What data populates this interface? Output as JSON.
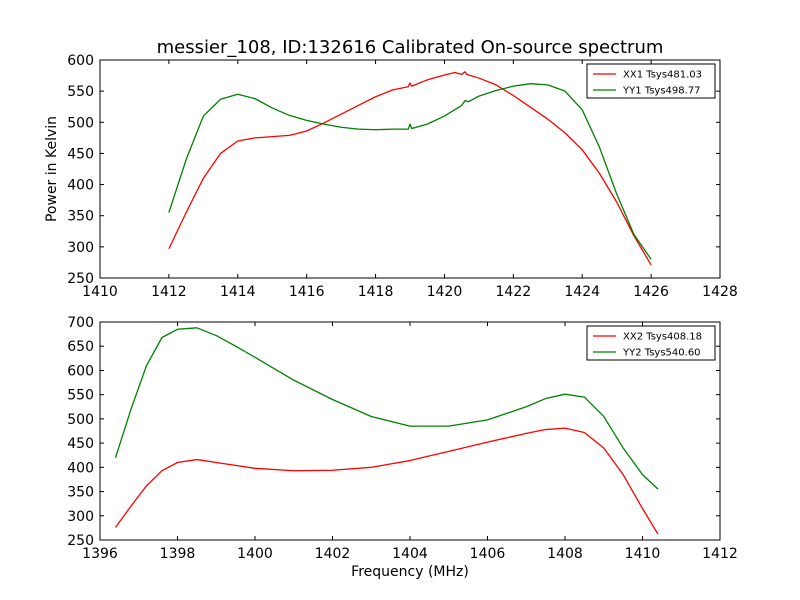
{
  "figure": {
    "title": "messier_108, ID:132616 Calibrated On-source spectrum",
    "shared_xlabel": "Frequency (MHz)"
  },
  "chart_data": [
    {
      "type": "line",
      "title": "messier_108, ID:132616 Calibrated On-source spectrum",
      "xlabel": "",
      "ylabel": "Power in Kelvin",
      "xlim": [
        1410,
        1428
      ],
      "ylim": [
        250,
        600
      ],
      "xticks": [
        1410,
        1412,
        1414,
        1416,
        1418,
        1420,
        1422,
        1424,
        1426,
        1428
      ],
      "yticks": [
        250,
        300,
        350,
        400,
        450,
        500,
        550,
        600
      ],
      "grid": false,
      "legend": "top-right",
      "series": [
        {
          "name": "XX1 Tsys481.03",
          "color": "#ff0000",
          "x": [
            1412.0,
            1412.5,
            1413.0,
            1413.5,
            1414.0,
            1414.5,
            1415.0,
            1415.5,
            1416.0,
            1416.5,
            1417.0,
            1417.5,
            1418.0,
            1418.5,
            1418.95,
            1419.0,
            1419.05,
            1419.5,
            1420.0,
            1420.3,
            1420.5,
            1420.6,
            1420.65,
            1420.7,
            1421.0,
            1421.5,
            1422.0,
            1422.5,
            1423.0,
            1423.5,
            1424.0,
            1424.5,
            1425.0,
            1425.5,
            1426.0
          ],
          "y": [
            297,
            355,
            410,
            450,
            470,
            475,
            477,
            479,
            486,
            499,
            513,
            527,
            541,
            552,
            557,
            563,
            558,
            568,
            576,
            580,
            577,
            581,
            577,
            576,
            571,
            560,
            543,
            524,
            505,
            483,
            456,
            418,
            372,
            318,
            271
          ]
        },
        {
          "name": "YY1 Tsys498.77",
          "color": "#008000",
          "x": [
            1412.0,
            1412.5,
            1413.0,
            1413.5,
            1414.0,
            1414.5,
            1415.0,
            1415.5,
            1416.0,
            1416.5,
            1417.0,
            1417.5,
            1418.0,
            1418.5,
            1418.95,
            1419.0,
            1419.05,
            1419.5,
            1420.0,
            1420.5,
            1420.6,
            1420.7,
            1421.0,
            1421.5,
            1422.0,
            1422.5,
            1423.0,
            1423.5,
            1424.0,
            1424.5,
            1425.0,
            1425.5,
            1426.0
          ],
          "y": [
            355,
            440,
            510,
            537,
            545,
            538,
            523,
            511,
            503,
            497,
            492,
            489,
            488,
            489,
            489,
            497,
            490,
            497,
            510,
            527,
            535,
            533,
            542,
            551,
            558,
            562,
            560,
            550,
            520,
            460,
            385,
            320,
            280
          ]
        }
      ]
    },
    {
      "type": "line",
      "title": "",
      "xlabel": "Frequency (MHz)",
      "ylabel": "",
      "xlim": [
        1396,
        1412
      ],
      "ylim": [
        250,
        700
      ],
      "xticks": [
        1396,
        1398,
        1400,
        1402,
        1404,
        1406,
        1408,
        1410,
        1412
      ],
      "yticks": [
        250,
        300,
        350,
        400,
        450,
        500,
        550,
        600,
        650,
        700
      ],
      "grid": false,
      "legend": "top-right",
      "series": [
        {
          "name": "XX2 Tsys408.18",
          "color": "#ff0000",
          "x": [
            1396.4,
            1396.8,
            1397.2,
            1397.6,
            1398.0,
            1398.5,
            1399.0,
            1400.0,
            1401.0,
            1402.0,
            1403.0,
            1404.0,
            1405.0,
            1406.0,
            1407.0,
            1407.5,
            1408.0,
            1408.5,
            1409.0,
            1409.5,
            1410.0,
            1410.4
          ],
          "y": [
            276,
            320,
            362,
            393,
            410,
            416,
            410,
            398,
            393,
            394,
            400,
            414,
            433,
            452,
            470,
            478,
            481,
            472,
            440,
            385,
            315,
            262
          ]
        },
        {
          "name": "YY2 Tsys540.60",
          "color": "#008000",
          "x": [
            1396.4,
            1396.8,
            1397.2,
            1397.6,
            1398.0,
            1398.5,
            1399.0,
            1399.5,
            1400.0,
            1401.0,
            1402.0,
            1403.0,
            1404.0,
            1405.0,
            1406.0,
            1407.0,
            1407.5,
            1408.0,
            1408.5,
            1409.0,
            1409.5,
            1410.0,
            1410.4
          ],
          "y": [
            420,
            520,
            610,
            668,
            685,
            688,
            672,
            650,
            627,
            580,
            540,
            505,
            485,
            485,
            498,
            525,
            542,
            551,
            545,
            505,
            440,
            385,
            355
          ]
        }
      ]
    }
  ]
}
